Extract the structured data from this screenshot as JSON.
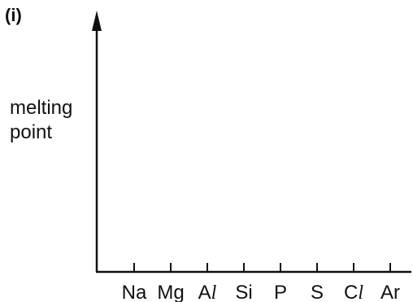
{
  "part_label": "(i)",
  "chart_data": {
    "type": "line",
    "title": "",
    "xlabel": "",
    "ylabel": [
      "melting",
      "point"
    ],
    "categories": [
      "Na",
      "Mg",
      "Al",
      "Si",
      "P",
      "S",
      "Cl",
      "Ar"
    ],
    "series": [],
    "grid": false,
    "y_axis_arrow": true
  },
  "colors": {
    "axis": "#111111",
    "background": "#ffffff"
  }
}
